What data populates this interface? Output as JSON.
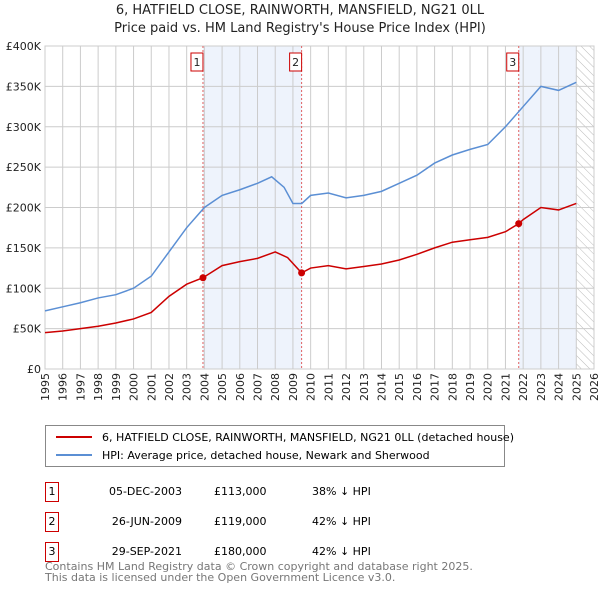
{
  "chart_data": {
    "type": "line",
    "title": "6, HATFIELD CLOSE, RAINWORTH, MANSFIELD, NG21 0LL",
    "subtitle": "Price paid vs. HM Land Registry's House Price Index (HPI)",
    "xlim": [
      1995,
      2026
    ],
    "ylim": [
      0,
      400000
    ],
    "x_ticks": [
      "1995",
      "1996",
      "1997",
      "1998",
      "1999",
      "2000",
      "2001",
      "2002",
      "2003",
      "2004",
      "2005",
      "2006",
      "2007",
      "2008",
      "2009",
      "2010",
      "2011",
      "2012",
      "2013",
      "2014",
      "2015",
      "2016",
      "2017",
      "2018",
      "2019",
      "2020",
      "2021",
      "2022",
      "2023",
      "2024",
      "2025",
      "2026"
    ],
    "y_ticks": [
      {
        "v": 0,
        "label": "£0"
      },
      {
        "v": 50000,
        "label": "£50K"
      },
      {
        "v": 100000,
        "label": "£100K"
      },
      {
        "v": 150000,
        "label": "£150K"
      },
      {
        "v": 200000,
        "label": "£200K"
      },
      {
        "v": 250000,
        "label": "£250K"
      },
      {
        "v": 300000,
        "label": "£300K"
      },
      {
        "v": 350000,
        "label": "£350K"
      },
      {
        "v": 400000,
        "label": "£400K"
      }
    ],
    "grid": true,
    "series": [
      {
        "name": "6, HATFIELD CLOSE, RAINWORTH, MANSFIELD, NG21 0LL (detached house)",
        "color": "#cc0000",
        "x": [
          1995,
          1996,
          1997,
          1998,
          1999,
          2000,
          2001,
          2002,
          2003,
          2003.92,
          2005,
          2006,
          2007,
          2008,
          2008.7,
          2009.49,
          2010,
          2011,
          2012,
          2013,
          2014,
          2015,
          2016,
          2017,
          2018,
          2019,
          2020,
          2021,
          2021.75,
          2022,
          2023,
          2024,
          2025
        ],
        "y": [
          45000,
          47000,
          50000,
          53000,
          57000,
          62000,
          70000,
          90000,
          105000,
          113000,
          128000,
          133000,
          137000,
          145000,
          138000,
          119000,
          125000,
          128000,
          124000,
          127000,
          130000,
          135000,
          142000,
          150000,
          157000,
          160000,
          163000,
          170000,
          180000,
          185000,
          200000,
          197000,
          205000
        ]
      },
      {
        "name": "HPI: Average price, detached house, Newark and Sherwood",
        "color": "#5b8fd4",
        "x": [
          1995,
          1996,
          1997,
          1998,
          1999,
          2000,
          2001,
          2002,
          2003,
          2004,
          2005,
          2006,
          2007,
          2007.8,
          2008.5,
          2009,
          2009.5,
          2010,
          2011,
          2012,
          2013,
          2014,
          2015,
          2016,
          2017,
          2018,
          2019,
          2020,
          2021,
          2022,
          2023,
          2024,
          2025
        ],
        "y": [
          72000,
          77000,
          82000,
          88000,
          92000,
          100000,
          115000,
          145000,
          175000,
          200000,
          215000,
          222000,
          230000,
          238000,
          225000,
          205000,
          205000,
          215000,
          218000,
          212000,
          215000,
          220000,
          230000,
          240000,
          255000,
          265000,
          272000,
          278000,
          300000,
          325000,
          350000,
          345000,
          355000
        ]
      }
    ],
    "sales": [
      {
        "n": "1",
        "x": 2003.92,
        "date": "05-DEC-2003",
        "price": "£113,000",
        "value": 113000,
        "hpi": "38% ↓ HPI"
      },
      {
        "n": "2",
        "x": 2009.49,
        "date": "26-JUN-2009",
        "price": "£119,000",
        "value": 119000,
        "hpi": "42% ↓ HPI"
      },
      {
        "n": "3",
        "x": 2021.75,
        "date": "29-SEP-2021",
        "price": "£180,000",
        "value": 180000,
        "hpi": "42% ↓ HPI"
      }
    ],
    "shaded_ranges": [
      [
        2003.92,
        2009.49
      ],
      [
        2021.75,
        2025.0
      ]
    ],
    "forecast_from": 2025.0
  },
  "footer": {
    "line1": "Contains HM Land Registry data © Crown copyright and database right 2025.",
    "line2": "This data is licensed under the Open Government Licence v3.0."
  }
}
